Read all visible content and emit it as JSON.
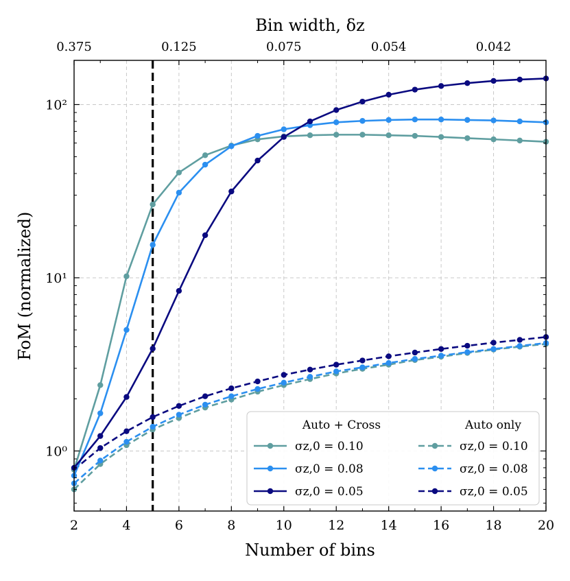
{
  "chart_data": {
    "type": "line",
    "title": "",
    "xlabel": "Number of bins",
    "ylabel": "FoM (normalized)",
    "top_xlabel": "Bin width, δz",
    "xlim": [
      2,
      20
    ],
    "ylim": [
      0.45,
      180
    ],
    "yscale": "log",
    "grid": true,
    "x_ticks": [
      2,
      4,
      6,
      8,
      10,
      12,
      14,
      16,
      18,
      20
    ],
    "x_tick_labels": [
      "2",
      "4",
      "6",
      "8",
      "10",
      "12",
      "14",
      "16",
      "18",
      "20"
    ],
    "y_ticks": [
      1,
      10,
      100
    ],
    "y_tick_labels": [
      "10⁰",
      "10¹",
      "10²"
    ],
    "top_ticks": [
      2,
      6,
      10,
      14,
      18
    ],
    "top_tick_labels": [
      "0.375",
      "0.125",
      "0.075",
      "0.054",
      "0.042"
    ],
    "vline": {
      "x": 5,
      "style": "dashed",
      "color": "#000000"
    },
    "x": [
      2,
      3,
      4,
      5,
      6,
      7,
      8,
      9,
      10,
      11,
      12,
      13,
      14,
      15,
      16,
      17,
      18,
      19,
      20
    ],
    "legend": {
      "position": "bottom-right",
      "column_headers": [
        "Auto + Cross",
        "Auto only"
      ]
    },
    "series": [
      {
        "name": "σz,0 = 0.10",
        "group": "Auto + Cross",
        "color": "#5f9ea0",
        "dash": "solid",
        "values": [
          0.78,
          2.4,
          10.2,
          26.5,
          40.5,
          51,
          58,
          63,
          65.5,
          66.5,
          67,
          67,
          66.5,
          66,
          65,
          64,
          63,
          62,
          61
        ]
      },
      {
        "name": "σz,0 = 0.08",
        "group": "Auto + Cross",
        "color": "#2b8ff0",
        "dash": "solid",
        "values": [
          0.72,
          1.65,
          5.0,
          15.5,
          31,
          45,
          57.5,
          66,
          72,
          76,
          79,
          80.5,
          81.5,
          82,
          82,
          81.5,
          81,
          80,
          79
        ]
      },
      {
        "name": "σz,0 = 0.05",
        "group": "Auto + Cross",
        "color": "#0a0a80",
        "dash": "solid",
        "values": [
          0.8,
          1.22,
          2.05,
          3.9,
          8.4,
          17.6,
          31.5,
          47.5,
          65,
          80,
          93,
          104,
          114,
          122,
          128,
          133,
          137,
          139.5,
          141.5
        ]
      },
      {
        "name": "σz,0 = 0.10",
        "group": "Auto only",
        "color": "#5f9ea0",
        "dash": "dashed",
        "values": [
          0.6,
          0.84,
          1.08,
          1.33,
          1.55,
          1.78,
          1.98,
          2.2,
          2.4,
          2.6,
          2.8,
          2.98,
          3.15,
          3.35,
          3.5,
          3.68,
          3.85,
          4.0,
          4.15
        ]
      },
      {
        "name": "σz,0 = 0.08",
        "group": "Auto only",
        "color": "#2b8ff0",
        "dash": "dashed",
        "values": [
          0.65,
          0.88,
          1.13,
          1.38,
          1.62,
          1.85,
          2.07,
          2.28,
          2.48,
          2.68,
          2.88,
          3.04,
          3.22,
          3.4,
          3.55,
          3.72,
          3.88,
          4.04,
          4.2
        ]
      },
      {
        "name": "σz,0 = 0.05",
        "group": "Auto only",
        "color": "#0a0a80",
        "dash": "dashed",
        "values": [
          0.78,
          1.04,
          1.3,
          1.57,
          1.82,
          2.07,
          2.3,
          2.52,
          2.75,
          2.95,
          3.15,
          3.33,
          3.52,
          3.7,
          3.88,
          4.05,
          4.22,
          4.38,
          4.55
        ]
      }
    ]
  }
}
